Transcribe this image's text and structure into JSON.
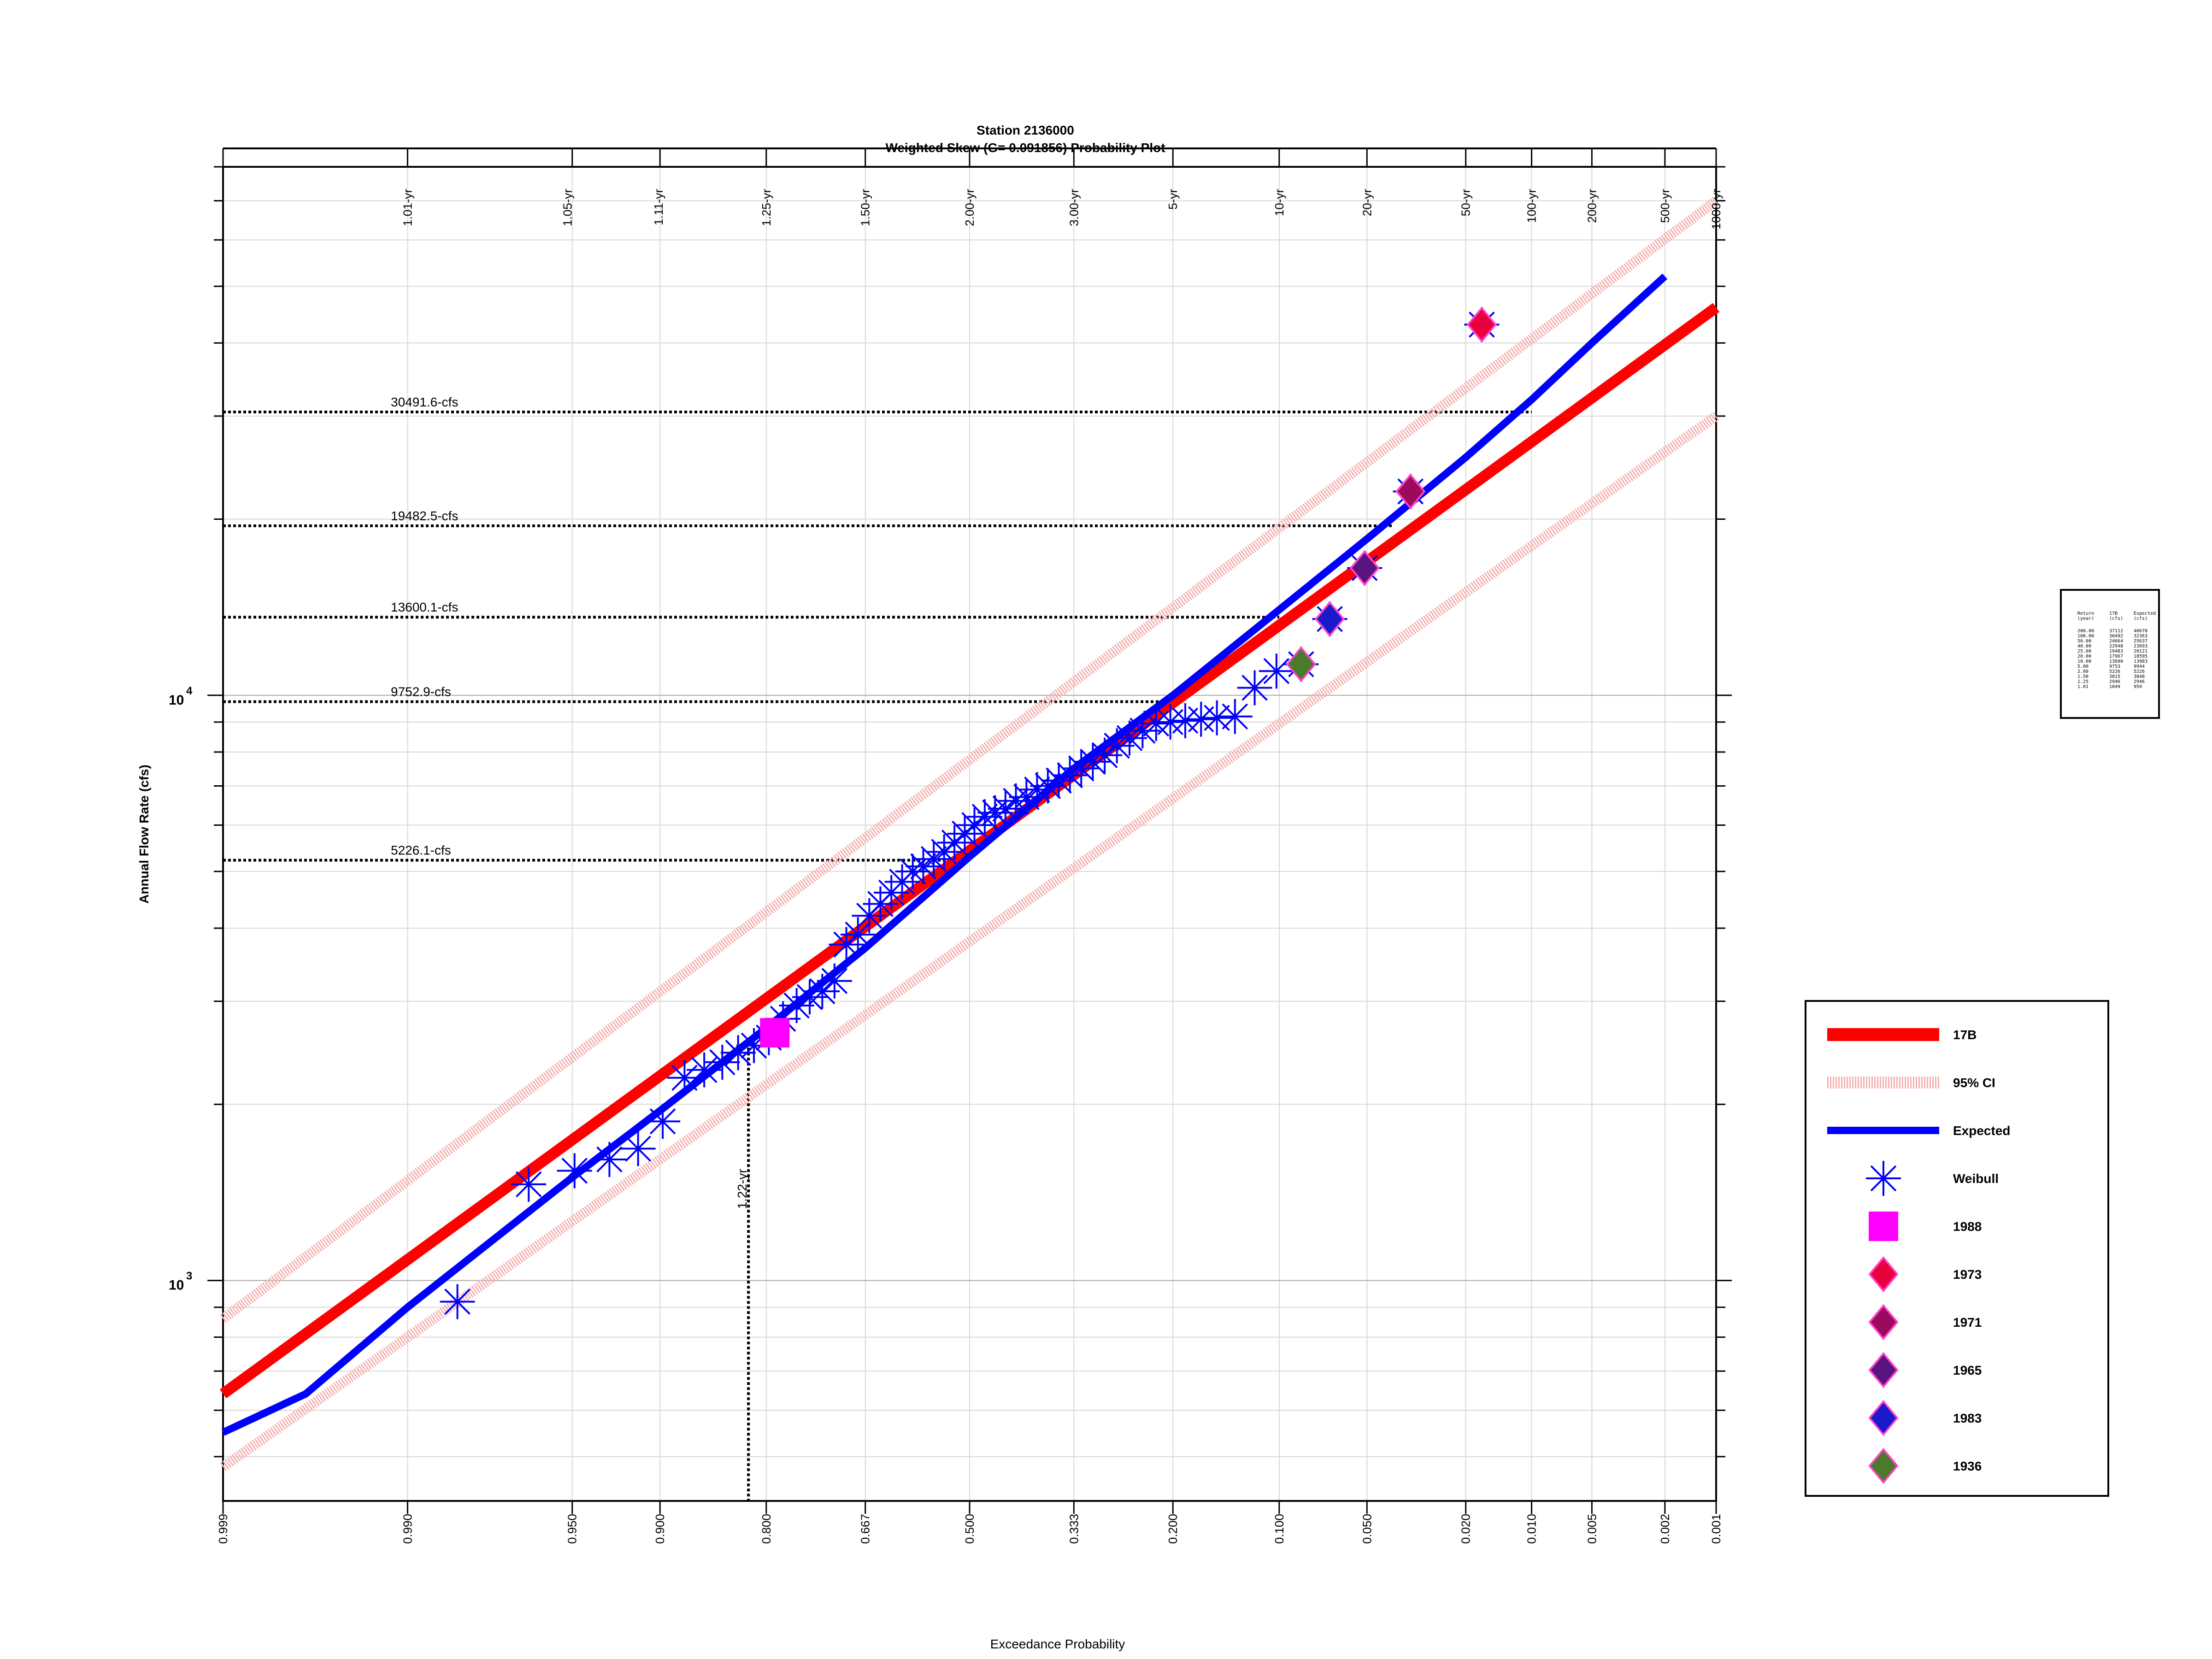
{
  "chart_data": {
    "type": "scatter",
    "title": "Station 2136000",
    "subtitle": "Weighted Skew (G= 0.091856) Probability Plot",
    "xlabel": "Exceedance Probability",
    "ylabel": "Annual Flow Rate (cfs)",
    "x_scale": "normal-probability",
    "y_scale": "log",
    "xlim": [
      0.999,
      0.001
    ],
    "ylim": [
      420,
      80000
    ],
    "grid": true,
    "x_ticks": [
      {
        "p": 0.999,
        "label": "0.999"
      },
      {
        "p": 0.99,
        "label": "0.990"
      },
      {
        "p": 0.95,
        "label": "0.950"
      },
      {
        "p": 0.9,
        "label": "0.900"
      },
      {
        "p": 0.8,
        "label": "0.800"
      },
      {
        "p": 0.667,
        "label": "0.667"
      },
      {
        "p": 0.5,
        "label": "0.500"
      },
      {
        "p": 0.333,
        "label": "0.333"
      },
      {
        "p": 0.2,
        "label": "0.200"
      },
      {
        "p": 0.1,
        "label": "0.100"
      },
      {
        "p": 0.05,
        "label": "0.050"
      },
      {
        "p": 0.02,
        "label": "0.020"
      },
      {
        "p": 0.01,
        "label": "0.010"
      },
      {
        "p": 0.005,
        "label": "0.005"
      },
      {
        "p": 0.002,
        "label": "0.002"
      },
      {
        "p": 0.001,
        "label": "0.001"
      }
    ],
    "return_period_ticks": [
      {
        "p": 0.99,
        "label": "1.01-yr"
      },
      {
        "p": 0.952,
        "label": "1.05-yr"
      },
      {
        "p": 0.901,
        "label": "1.11-yr"
      },
      {
        "p": 0.8,
        "label": "1.25-yr"
      },
      {
        "p": 0.667,
        "label": "1.50-yr"
      },
      {
        "p": 0.5,
        "label": "2.00-yr"
      },
      {
        "p": 0.333,
        "label": "3.00-yr"
      },
      {
        "p": 0.2,
        "label": "5-yr"
      },
      {
        "p": 0.1,
        "label": "10-yr"
      },
      {
        "p": 0.05,
        "label": "20-yr"
      },
      {
        "p": 0.02,
        "label": "50-yr"
      },
      {
        "p": 0.01,
        "label": "100-yr"
      },
      {
        "p": 0.005,
        "label": "200-yr"
      },
      {
        "p": 0.002,
        "label": "500-yr"
      },
      {
        "p": 0.001,
        "label": "1000-yr"
      }
    ],
    "y_major_ticks": [
      {
        "value": 1000,
        "base": "10",
        "exp": "3"
      },
      {
        "value": 10000,
        "base": "10",
        "exp": "4"
      }
    ],
    "reference_lines": [
      {
        "value": 30491.6,
        "p": 0.01,
        "label": "30491.6-cfs"
      },
      {
        "value": 19482.5,
        "p": 0.04,
        "label": "19482.5-cfs"
      },
      {
        "value": 13600.1,
        "p": 0.1,
        "label": "13600.1-cfs"
      },
      {
        "value": 9752.9,
        "p": 0.2,
        "label": "9752.9-cfs"
      },
      {
        "value": 5226.1,
        "p": 0.5,
        "label": "5226.1-cfs"
      }
    ],
    "vertical_reference": {
      "p": 0.82,
      "value": 2500,
      "label": "1.22-yr"
    },
    "series": [
      {
        "name": "17B",
        "kind": "line",
        "color": "#ff0000",
        "points": [
          [
            0.999,
            640
          ],
          [
            0.001,
            46000
          ]
        ]
      },
      {
        "name": "95% CI",
        "kind": "band",
        "color": "#f4b0b0",
        "upper": [
          [
            0.999,
            860
          ],
          [
            0.001,
            70000
          ]
        ],
        "lower": [
          [
            0.999,
            480
          ],
          [
            0.001,
            30000
          ]
        ]
      },
      {
        "name": "Expected",
        "kind": "line",
        "color": "#0000ff",
        "points": [
          [
            0.999,
            550
          ],
          [
            0.997,
            640
          ],
          [
            0.99,
            900
          ],
          [
            0.95,
            1500
          ],
          [
            0.9,
            1950
          ],
          [
            0.8,
            2700
          ],
          [
            0.667,
            3700
          ],
          [
            0.5,
            5300
          ],
          [
            0.333,
            7500
          ],
          [
            0.2,
            10000
          ],
          [
            0.1,
            14000
          ],
          [
            0.05,
            18500
          ],
          [
            0.02,
            25500
          ],
          [
            0.01,
            32000
          ],
          [
            0.005,
            40000
          ],
          [
            0.002,
            52000
          ]
        ]
      },
      {
        "name": "Weibull",
        "kind": "points",
        "color": "#0000ff",
        "marker": "asterisk",
        "points": [
          [
            0.983,
            920
          ],
          [
            0.966,
            1460
          ],
          [
            0.949,
            1540
          ],
          [
            0.932,
            1610
          ],
          [
            0.915,
            1680
          ],
          [
            0.898,
            1870
          ],
          [
            0.881,
            2220
          ],
          [
            0.864,
            2290
          ],
          [
            0.847,
            2360
          ],
          [
            0.831,
            2450
          ],
          [
            0.814,
            2520
          ],
          [
            0.797,
            2600
          ],
          [
            0.78,
            2800
          ],
          [
            0.763,
            2950
          ],
          [
            0.746,
            3050
          ],
          [
            0.729,
            3120
          ],
          [
            0.712,
            3250
          ],
          [
            0.695,
            3750
          ],
          [
            0.678,
            3900
          ],
          [
            0.661,
            4200
          ],
          [
            0.644,
            4400
          ],
          [
            0.627,
            4600
          ],
          [
            0.61,
            4800
          ],
          [
            0.593,
            5000
          ],
          [
            0.576,
            5100
          ],
          [
            0.559,
            5250
          ],
          [
            0.542,
            5400
          ],
          [
            0.525,
            5600
          ],
          [
            0.508,
            5800
          ],
          [
            0.492,
            6000
          ],
          [
            0.475,
            6200
          ],
          [
            0.458,
            6300
          ],
          [
            0.441,
            6400
          ],
          [
            0.424,
            6600
          ],
          [
            0.407,
            6700
          ],
          [
            0.39,
            6900
          ],
          [
            0.373,
            7000
          ],
          [
            0.356,
            7150
          ],
          [
            0.339,
            7300
          ],
          [
            0.322,
            7500
          ],
          [
            0.305,
            7700
          ],
          [
            0.288,
            7900
          ],
          [
            0.271,
            8200
          ],
          [
            0.254,
            8450
          ],
          [
            0.237,
            8700
          ],
          [
            0.22,
            8950
          ],
          [
            0.203,
            9000
          ],
          [
            0.186,
            9050
          ],
          [
            0.169,
            9100
          ],
          [
            0.153,
            9150
          ],
          [
            0.136,
            9200
          ],
          [
            0.119,
            10300
          ],
          [
            0.102,
            11000
          ],
          [
            0.085,
            11300
          ],
          [
            0.068,
            13500
          ],
          [
            0.051,
            16500
          ],
          [
            0.034,
            22300
          ],
          [
            0.017,
            43000
          ]
        ]
      },
      {
        "name": "1988",
        "kind": "points",
        "color": "#ff00ff",
        "marker": "square",
        "points": [
          [
            0.79,
            2650
          ]
        ]
      },
      {
        "name": "1973",
        "kind": "points",
        "color": "#e8003c",
        "marker": "diamond",
        "points": [
          [
            0.017,
            43000
          ]
        ]
      },
      {
        "name": "1971",
        "kind": "points",
        "color": "#9b0a5c",
        "marker": "diamond",
        "points": [
          [
            0.034,
            22300
          ]
        ]
      },
      {
        "name": "1965",
        "kind": "points",
        "color": "#5a1480",
        "marker": "diamond",
        "points": [
          [
            0.051,
            16500
          ]
        ]
      },
      {
        "name": "1983",
        "kind": "points",
        "color": "#1a1acc",
        "marker": "diamond",
        "points": [
          [
            0.068,
            13500
          ]
        ]
      },
      {
        "name": "1936",
        "kind": "points",
        "color": "#4a7a2a",
        "marker": "diamond",
        "points": [
          [
            0.085,
            11300
          ]
        ]
      }
    ],
    "legend_placement": "right",
    "inset_table": {
      "headers": [
        [
          "Return",
          "(year)"
        ],
        [
          "17B",
          "(cfs)"
        ],
        [
          "Expected",
          "(cfs)"
        ]
      ],
      "rows": [
        [
          "200.00",
          "37112",
          "40678"
        ],
        [
          "100.00",
          "30492",
          "32363"
        ],
        [
          "50.00",
          "24664",
          "25637"
        ],
        [
          "40.00",
          "22948",
          "23693"
        ],
        [
          "25.00",
          "19483",
          "20121"
        ],
        [
          "20.00",
          "17967",
          "18595"
        ],
        [
          "10.00",
          "13600",
          "13983"
        ],
        [
          "5.00",
          "9753",
          "9944"
        ],
        [
          "2.00",
          "5226",
          "5226"
        ],
        [
          "1.50",
          "3815",
          "3848"
        ],
        [
          "1.25",
          "2946",
          "2946"
        ],
        [
          "1.01",
          "1049",
          "959"
        ]
      ]
    }
  }
}
